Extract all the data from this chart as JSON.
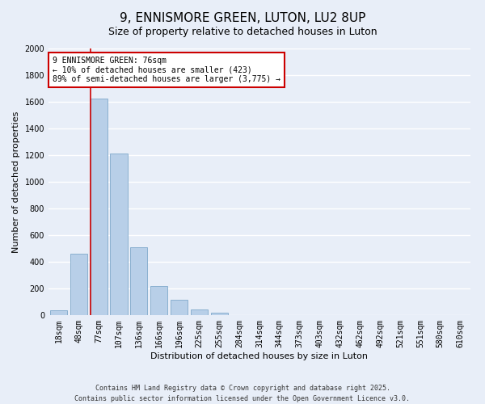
{
  "title": "9, ENNISMORE GREEN, LUTON, LU2 8UP",
  "subtitle": "Size of property relative to detached houses in Luton",
  "xlabel": "Distribution of detached houses by size in Luton",
  "ylabel": "Number of detached properties",
  "bar_labels": [
    "18sqm",
    "48sqm",
    "77sqm",
    "107sqm",
    "136sqm",
    "166sqm",
    "196sqm",
    "225sqm",
    "255sqm",
    "284sqm",
    "314sqm",
    "344sqm",
    "373sqm",
    "403sqm",
    "432sqm",
    "462sqm",
    "492sqm",
    "521sqm",
    "551sqm",
    "580sqm",
    "610sqm"
  ],
  "bar_values": [
    35,
    460,
    1625,
    1210,
    510,
    220,
    115,
    45,
    20,
    0,
    0,
    0,
    0,
    0,
    0,
    0,
    0,
    0,
    0,
    0,
    0
  ],
  "bar_color": "#b8cfe8",
  "bar_edge_color": "#8ab0d0",
  "ylim": [
    0,
    2000
  ],
  "yticks": [
    0,
    200,
    400,
    600,
    800,
    1000,
    1200,
    1400,
    1600,
    1800,
    2000
  ],
  "property_line_index": 2,
  "property_label": "9 ENNISMORE GREEN: 76sqm",
  "annotation_line1": "← 10% of detached houses are smaller (423)",
  "annotation_line2": "89% of semi-detached houses are larger (3,775) →",
  "annotation_box_color": "#ffffff",
  "annotation_box_edge": "#cc0000",
  "property_line_color": "#cc0000",
  "footer1": "Contains HM Land Registry data © Crown copyright and database right 2025.",
  "footer2": "Contains public sector information licensed under the Open Government Licence v3.0.",
  "bg_color": "#e8eef8",
  "grid_color": "#ffffff",
  "title_fontsize": 11,
  "subtitle_fontsize": 9,
  "axis_label_fontsize": 8,
  "tick_fontsize": 7
}
